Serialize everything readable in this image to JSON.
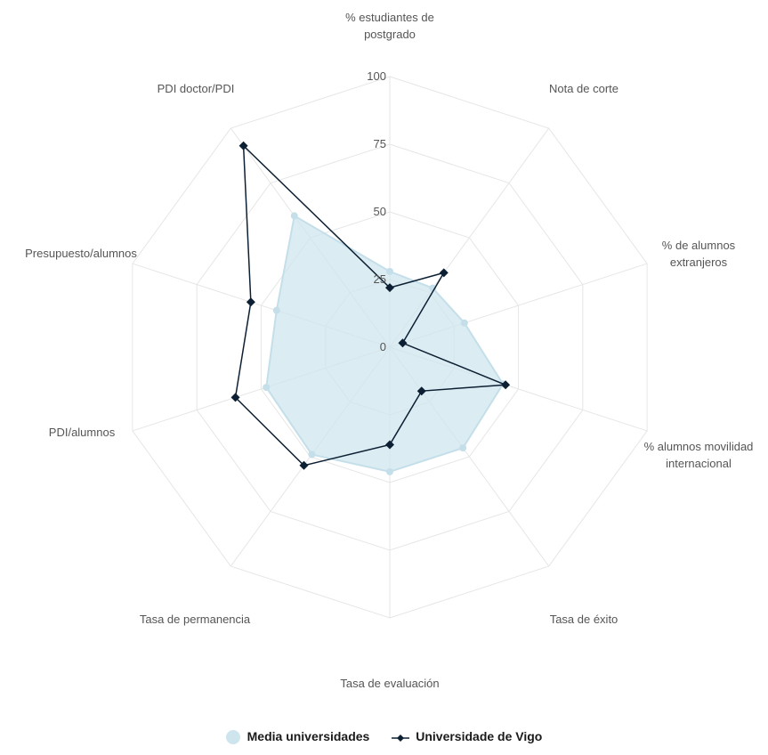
{
  "chart_data": {
    "type": "radar",
    "categories": [
      [
        "% estudiantes de",
        "postgrado"
      ],
      [
        "Nota de corte"
      ],
      [
        "% de alumnos",
        "extranjeros"
      ],
      [
        "% alumnos movilidad",
        "internacional"
      ],
      [
        "Tasa de éxito"
      ],
      [
        "Tasa de evaluación"
      ],
      [
        "Tasa de permanencia"
      ],
      [
        "PDI/alumnos"
      ],
      [
        "Presupuesto/alumnos"
      ],
      [
        "PDI doctor/PDI"
      ]
    ],
    "rlim": [
      0,
      100
    ],
    "ticks": [
      "0",
      "25",
      "50",
      "75",
      "100"
    ],
    "tick_values": [
      0,
      25,
      50,
      75,
      100
    ],
    "grid": true,
    "legend_position": "bottom",
    "series": [
      {
        "name": "Media universidades",
        "style": "area",
        "color": "#cfe5ee",
        "stroke": "#c4dfe9",
        "values": [
          28,
          27,
          29,
          44,
          46,
          46,
          49,
          48,
          44,
          60
        ]
      },
      {
        "name": "Universidade de Vigo",
        "style": "line",
        "color": "#0d2033",
        "values": [
          22,
          34,
          5,
          45,
          20,
          36,
          54,
          60,
          54,
          92
        ]
      }
    ]
  }
}
